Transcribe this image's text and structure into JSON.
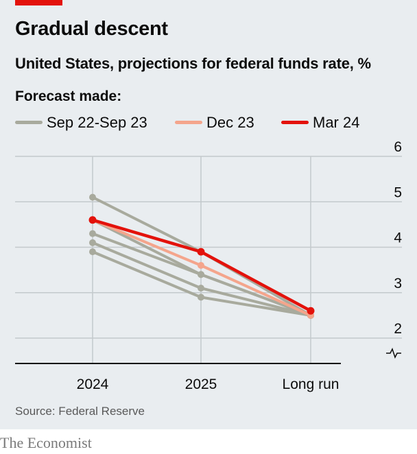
{
  "header": {
    "title": "Gradual descent",
    "subtitle": "United States, projections for federal funds rate, %"
  },
  "legend": {
    "title": "Forecast made:",
    "items": [
      {
        "label": "Sep 22-Sep 23",
        "color": "#a8aa9d"
      },
      {
        "label": "Dec 23",
        "color": "#f4a58c"
      },
      {
        "label": "Mar 24",
        "color": "#e3120b"
      }
    ]
  },
  "footer": {
    "source": "Source: Federal Reserve",
    "brand": "The Economist"
  },
  "colors": {
    "background": "#e9edf0",
    "accent": "#e3120b",
    "grid": "#c3c9cc",
    "axis": "#0c0c0c"
  },
  "chart_data": {
    "type": "line",
    "categories": [
      "2024",
      "2025",
      "Long run"
    ],
    "yticks": [
      "6",
      "5",
      "4",
      "3",
      "2"
    ],
    "ylim": [
      1.5,
      6
    ],
    "grid": true,
    "axis_break": true,
    "series": [
      {
        "name": "Sep 22-Sep 23",
        "values": [
          5.1,
          3.9,
          2.5
        ],
        "color": "#a8aa9d"
      },
      {
        "name": "Sep 22-Sep 23",
        "values": [
          4.6,
          3.4,
          2.5
        ],
        "color": "#a8aa9d"
      },
      {
        "name": "Sep 22-Sep 23",
        "values": [
          4.3,
          3.4,
          2.5
        ],
        "color": "#a8aa9d"
      },
      {
        "name": "Sep 22-Sep 23",
        "values": [
          4.1,
          3.1,
          2.5
        ],
        "color": "#a8aa9d"
      },
      {
        "name": "Sep 22-Sep 23",
        "values": [
          3.9,
          2.9,
          2.5
        ],
        "color": "#a8aa9d"
      },
      {
        "name": "Dec 23",
        "values": [
          4.6,
          3.6,
          2.5
        ],
        "color": "#f4a58c"
      },
      {
        "name": "Mar 24",
        "values": [
          4.6,
          3.9,
          2.6
        ],
        "color": "#e3120b"
      }
    ]
  }
}
